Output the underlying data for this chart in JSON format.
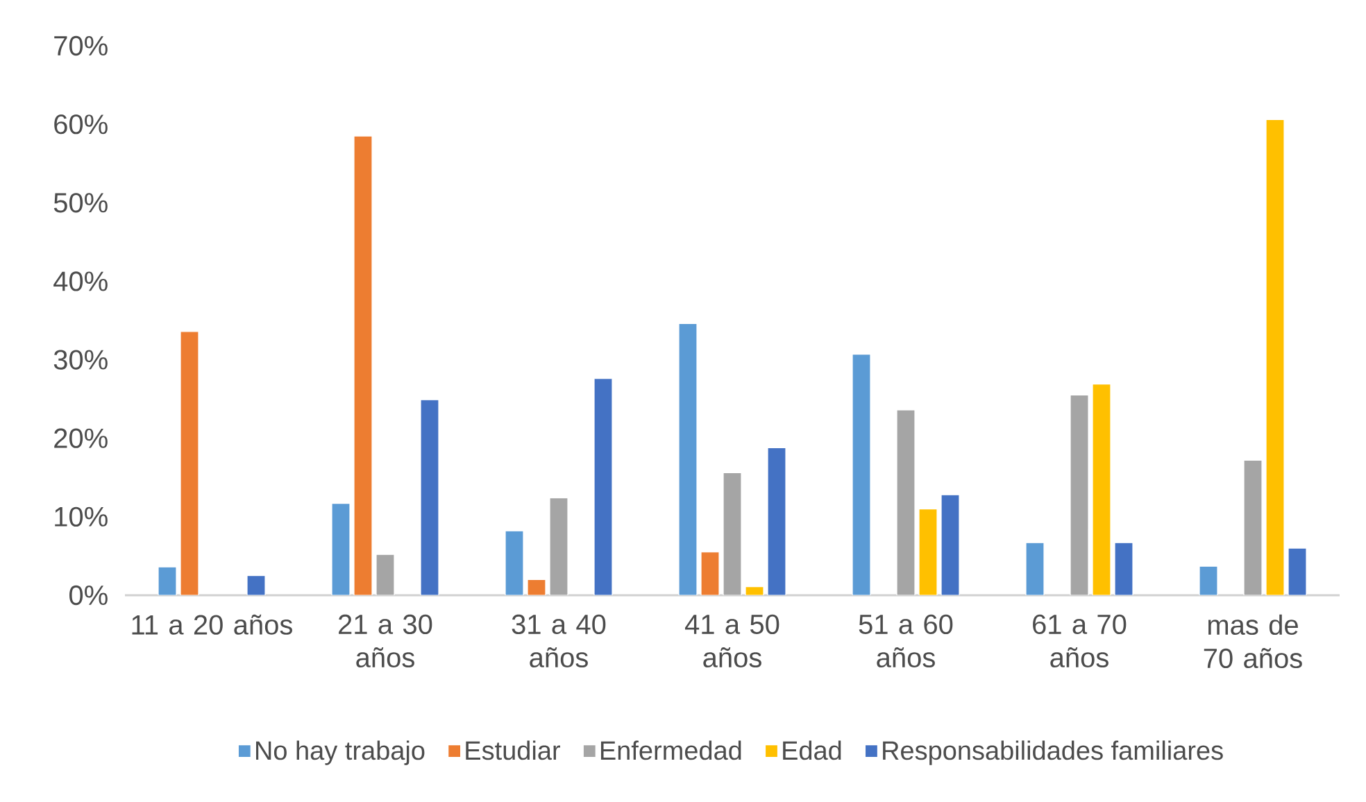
{
  "chart_data": {
    "type": "bar",
    "categories": [
      "11 a 20 años",
      "21 a 30 años",
      "31 a 40 años",
      "41 a 50 años",
      "51 a 60 años",
      "61 a 70 años",
      "mas de 70 años"
    ],
    "series": [
      {
        "name": "No hay trabajo",
        "color": "#5b9bd5",
        "values": [
          3.6,
          11.7,
          8.2,
          34.6,
          30.7,
          6.7,
          3.7
        ]
      },
      {
        "name": "Estudiar",
        "color": "#ed7d31",
        "values": [
          33.6,
          58.5,
          2.0,
          5.5,
          null,
          null,
          null
        ]
      },
      {
        "name": "Enfermedad",
        "color": "#a5a5a5",
        "values": [
          null,
          5.2,
          12.4,
          15.6,
          23.6,
          25.5,
          17.2
        ]
      },
      {
        "name": "Edad",
        "color": "#ffc000",
        "values": [
          null,
          null,
          null,
          1.1,
          11.0,
          26.9,
          60.6
        ]
      },
      {
        "name": "Responsabilidades familiares",
        "color": "#4472c4",
        "values": [
          2.5,
          24.9,
          27.6,
          18.8,
          12.8,
          6.7,
          6.0
        ]
      }
    ],
    "ylim": [
      0,
      70
    ],
    "yticks": [
      {
        "value": 0,
        "label": "0%"
      },
      {
        "value": 10,
        "label": "10%"
      },
      {
        "value": 20,
        "label": "20%"
      },
      {
        "value": 30,
        "label": "30%"
      },
      {
        "value": 40,
        "label": "40%"
      },
      {
        "value": 50,
        "label": "50%"
      },
      {
        "value": 60,
        "label": "60%"
      },
      {
        "value": 70,
        "label": "70%"
      }
    ],
    "legend": "bottom",
    "grid": false
  }
}
